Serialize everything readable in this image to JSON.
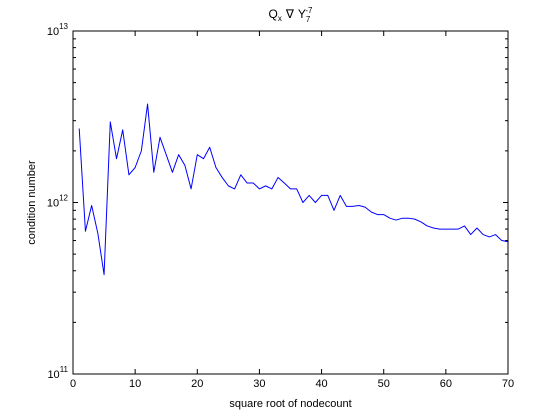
{
  "chart_data": {
    "type": "line",
    "title": {
      "base": "Q",
      "base_sub": "x",
      "nabla": "∇",
      "y": "Y",
      "y_sub": "7",
      "y_sup": "-7"
    },
    "xlabel": "square root of nodecount",
    "ylabel": "condition number",
    "xlim": [
      0,
      70
    ],
    "ylim": [
      100000000000,
      10000000000000
    ],
    "yscale": "log",
    "grid": false,
    "x_ticks": [
      {
        "value": 0,
        "label": "0"
      },
      {
        "value": 10,
        "label": "10"
      },
      {
        "value": 20,
        "label": "20"
      },
      {
        "value": 30,
        "label": "30"
      },
      {
        "value": 40,
        "label": "40"
      },
      {
        "value": 50,
        "label": "50"
      },
      {
        "value": 60,
        "label": "60"
      },
      {
        "value": 70,
        "label": "70"
      }
    ],
    "y_ticks": [
      {
        "value": 100000000000,
        "base": "10",
        "exp": "11"
      },
      {
        "value": 1000000000000,
        "base": "10",
        "exp": "12"
      },
      {
        "value": 10000000000000,
        "base": "10",
        "exp": "13"
      }
    ],
    "series": [
      {
        "color": "#0000ff",
        "x": [
          1,
          2,
          3,
          4,
          5,
          6,
          7,
          8,
          9,
          10,
          11,
          12,
          13,
          14,
          15,
          16,
          17,
          18,
          19,
          20,
          21,
          22,
          23,
          24,
          25,
          26,
          27,
          28,
          29,
          30,
          31,
          32,
          33,
          34,
          35,
          36,
          37,
          38,
          39,
          40,
          41,
          42,
          43,
          44,
          45,
          46,
          47,
          48,
          49,
          50,
          51,
          52,
          53,
          54,
          55,
          56,
          57,
          58,
          59,
          60,
          61,
          62,
          63,
          64,
          65,
          66,
          67,
          68,
          69,
          70
        ],
        "y": [
          2700000000000.0,
          680000000000.0,
          960000000000.0,
          660000000000.0,
          380000000000.0,
          2950000000000.0,
          1800000000000.0,
          2650000000000.0,
          1450000000000.0,
          1600000000000.0,
          2000000000000.0,
          3750000000000.0,
          1500000000000.0,
          2400000000000.0,
          1900000000000.0,
          1500000000000.0,
          1900000000000.0,
          1650000000000.0,
          1200000000000.0,
          1900000000000.0,
          1800000000000.0,
          2100000000000.0,
          1600000000000.0,
          1400000000000.0,
          1250000000000.0,
          1200000000000.0,
          1450000000000.0,
          1300000000000.0,
          1300000000000.0,
          1200000000000.0,
          1250000000000.0,
          1200000000000.0,
          1400000000000.0,
          1300000000000.0,
          1200000000000.0,
          1200000000000.0,
          1000000000000.0,
          1100000000000.0,
          1000000000000.0,
          1100000000000.0,
          1100000000000.0,
          900000000000.0,
          1100000000000.0,
          950000000000.0,
          950000000000.0,
          960000000000.0,
          940000000000.0,
          880000000000.0,
          850000000000.0,
          850000000000.0,
          810000000000.0,
          790000000000.0,
          810000000000.0,
          810000000000.0,
          800000000000.0,
          770000000000.0,
          730000000000.0,
          710000000000.0,
          700000000000.0,
          700000000000.0,
          700000000000.0,
          700000000000.0,
          730000000000.0,
          650000000000.0,
          710000000000.0,
          650000000000.0,
          630000000000.0,
          650000000000.0,
          600000000000.0,
          590000000000.0
        ]
      }
    ]
  }
}
